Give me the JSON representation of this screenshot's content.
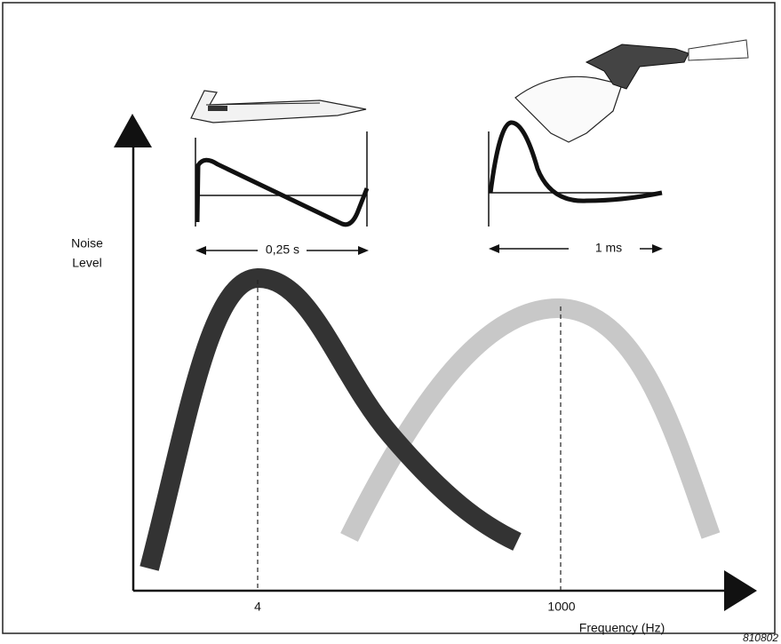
{
  "y_label": [
    "Noise",
    "Level"
  ],
  "insets": [
    {
      "duration": "0,25 s"
    },
    {
      "duration": "1 ms"
    }
  ],
  "x_labels": [
    "4",
    "1000"
  ],
  "x_axis_title": "Frequency (Hz)",
  "figure_id": "810802"
}
